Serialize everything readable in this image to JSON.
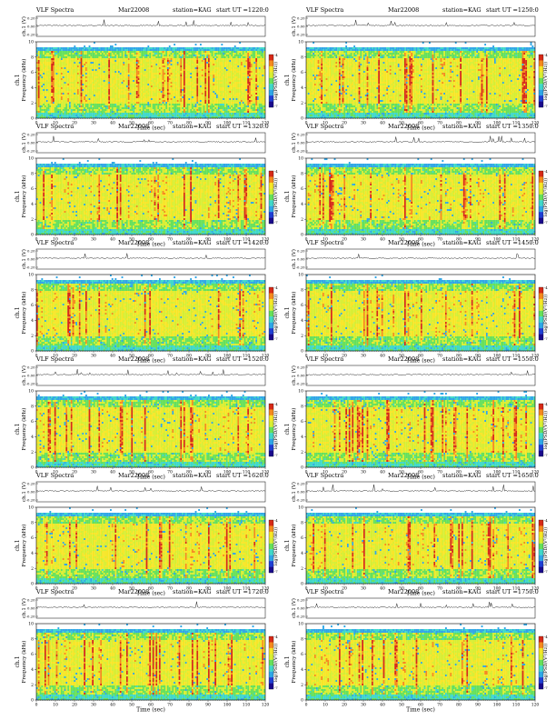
{
  "colors": {
    "scale": [
      "#1a0a8c",
      "#1f3fd4",
      "#2fa6e6",
      "#3fd8c8",
      "#66e05a",
      "#d8ee32",
      "#f7e627",
      "#f58a1e",
      "#d62a17"
    ],
    "trace": "#222222"
  },
  "panels": [
    {
      "title": "VLF Spectra",
      "date": "Mar22008",
      "station": "station=KAG",
      "ut": "start UT =1220:0"
    },
    {
      "title": "VLF Spectra",
      "date": "Mar22008",
      "station": "station=KAG",
      "ut": "start UT =1250:0"
    },
    {
      "title": "VLF Spectra",
      "date": "Mar22008",
      "station": "station=KAG",
      "ut": "start UT =1320:0"
    },
    {
      "title": "VLF Spectra",
      "date": "Mar22008",
      "station": "station=KAG",
      "ut": "start UT =1350:0"
    },
    {
      "title": "VLF Spectra",
      "date": "Mar22008",
      "station": "station=KAG",
      "ut": "start UT =1420:0"
    },
    {
      "title": "VLF Spectra",
      "date": "Mar22008",
      "station": "station=KAG",
      "ut": "start UT =1450:0"
    },
    {
      "title": "VLF Spectra",
      "date": "Mar22008",
      "station": "station=KAG",
      "ut": "start UT =1520:0"
    },
    {
      "title": "VLF Spectra",
      "date": "Mar22008",
      "station": "station=KAG",
      "ut": "start UT =1550:0"
    },
    {
      "title": "VLF Spectra",
      "date": "Mar22008",
      "station": "station=KAG",
      "ut": "start UT =1620:0"
    },
    {
      "title": "VLF Spectra",
      "date": "Mar22008",
      "station": "station=KAG",
      "ut": "start UT =1650:0"
    },
    {
      "title": "VLF Spectra",
      "date": "Mar22008",
      "station": "station=KAG",
      "ut": "start UT =1720:0"
    },
    {
      "title": "VLF Spectra",
      "date": "Mar22008",
      "station": "station=KAG",
      "ut": "start UT =1750:0"
    }
  ],
  "chart_data": {
    "type": "heatmap",
    "panel_count": 12,
    "layout": "6 rows x 2 columns",
    "waveform": {
      "ylabel": "ch.1 (V)",
      "yticks": [
        "0.20",
        "0.00",
        "-0.20"
      ]
    },
    "spectrogram": {
      "ylabel_channel": "ch.1",
      "ylabel": "Frequency (kHz)",
      "xlabel": "Time (sec)",
      "xlim": [
        0,
        120
      ],
      "ylim": [
        0,
        10
      ],
      "xticks": [
        0,
        10,
        20,
        30,
        40,
        50,
        60,
        70,
        80,
        90,
        100,
        110,
        120
      ],
      "yticks": [
        0,
        2,
        4,
        6,
        8,
        10
      ],
      "colorbar_label": "log(PSD/(V²/Hz))",
      "colorbar_ticks": [
        "-4",
        "-7"
      ],
      "colormap": "blue-cyan-green-yellow-red",
      "description_note": "VLF noise with bright red vertical bursts spread across 0-120 s; band edge near 9.5 kHz"
    }
  }
}
